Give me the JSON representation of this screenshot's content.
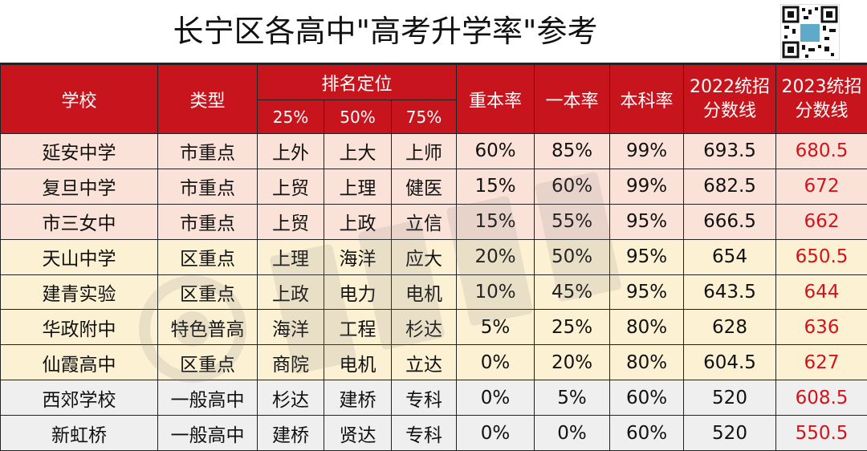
{
  "title": "长宁区各高中\"高考升学率\"参考",
  "colors": {
    "header_bg": "#c8141c",
    "header_text": "#ffffff",
    "highlight_text": "#d0141c",
    "key_row_bg": "#fbe2d8",
    "district_row_bg": "#fdf1d4",
    "general_row_bg": "#efefef"
  },
  "header": {
    "school": "学校",
    "type": "类型",
    "ranking": "排名定位",
    "p25": "25%",
    "p50": "50%",
    "p75": "75%",
    "key_rate": "重本率",
    "tier1_rate": "一本率",
    "bachelor_rate": "本科率",
    "score2022_l1": "2022统招",
    "score2022_l2": "分数线",
    "score2023_l1": "2023统招",
    "score2023_l2": "分数线"
  },
  "rows": [
    {
      "school": "延安中学",
      "type": "市重点",
      "p25": "上外",
      "p50": "上大",
      "p75": "上师",
      "key": "60%",
      "tier1": "85%",
      "bach": "99%",
      "s2022": "693.5",
      "s2023": "680.5"
    },
    {
      "school": "复旦中学",
      "type": "市重点",
      "p25": "上贸",
      "p50": "上理",
      "p75": "健医",
      "key": "15%",
      "tier1": "60%",
      "bach": "99%",
      "s2022": "682.5",
      "s2023": "672"
    },
    {
      "school": "市三女中",
      "type": "市重点",
      "p25": "上贸",
      "p50": "上政",
      "p75": "立信",
      "key": "15%",
      "tier1": "55%",
      "bach": "95%",
      "s2022": "666.5",
      "s2023": "662"
    },
    {
      "school": "天山中学",
      "type": "区重点",
      "p25": "上理",
      "p50": "海洋",
      "p75": "应大",
      "key": "20%",
      "tier1": "50%",
      "bach": "95%",
      "s2022": "654",
      "s2023": "650.5"
    },
    {
      "school": "建青实验",
      "type": "区重点",
      "p25": "上政",
      "p50": "电力",
      "p75": "电机",
      "key": "10%",
      "tier1": "45%",
      "bach": "95%",
      "s2022": "643.5",
      "s2023": "644"
    },
    {
      "school": "华政附中",
      "type": "特色普高",
      "p25": "海洋",
      "p50": "工程",
      "p75": "杉达",
      "key": "5%",
      "tier1": "25%",
      "bach": "80%",
      "s2022": "628",
      "s2023": "636"
    },
    {
      "school": "仙霞高中",
      "type": "区重点",
      "p25": "商院",
      "p50": "电机",
      "p75": "立达",
      "key": "0%",
      "tier1": "20%",
      "bach": "80%",
      "s2022": "604.5",
      "s2023": "627"
    },
    {
      "school": "西郊学校",
      "type": "一般高中",
      "p25": "杉达",
      "p50": "建桥",
      "p75": "专科",
      "key": "0%",
      "tier1": "5%",
      "bach": "60%",
      "s2022": "520",
      "s2023": "608.5"
    },
    {
      "school": "新虹桥",
      "type": "一般高中",
      "p25": "建桥",
      "p50": "贤达",
      "p75": "专科",
      "key": "0%",
      "tier1": "0%",
      "bach": "60%",
      "s2022": "520",
      "s2023": "550.5"
    }
  ]
}
